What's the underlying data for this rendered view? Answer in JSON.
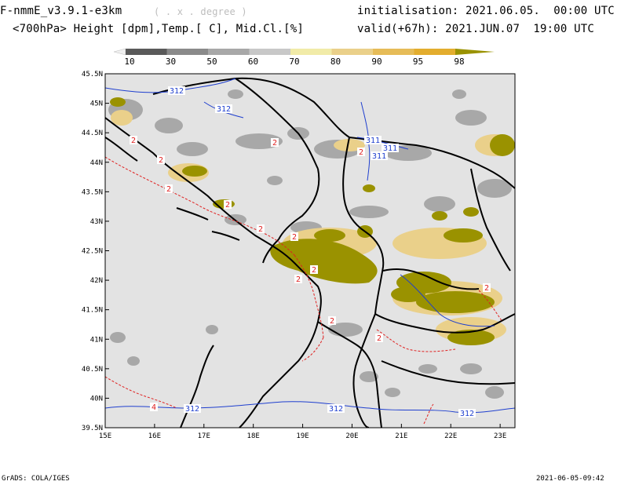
{
  "header": {
    "model": "F-nmmE_v3.9.1-e3km",
    "units": "( . x . degree )",
    "fields": "<700hPa> Height [dpm],Temp.[ C], Mid.Cl.[%]",
    "init": "initialisation: 2021.06.05.  00:00 UTC",
    "valid": "valid(+67h): 2021.JUN.07  19:00 UTC"
  },
  "colorbar": {
    "labels": [
      "10",
      "30",
      "50",
      "60",
      "70",
      "80",
      "90",
      "95",
      "98"
    ],
    "colors": [
      "#f0f0f0",
      "#5a5a5a",
      "#8a8a8a",
      "#a8a8a8",
      "#c8c8c8",
      "#f1eba8",
      "#ead08a",
      "#e6bc58",
      "#e3ad2e",
      "#9a9200"
    ]
  },
  "axes": {
    "lat_labels": [
      "45.5N",
      "45N",
      "44.5N",
      "44N",
      "43.5N",
      "43N",
      "42.5N",
      "42N",
      "41.5N",
      "41N",
      "40.5N",
      "40N",
      "39.5N"
    ],
    "lon_labels": [
      "15E",
      "16E",
      "17E",
      "18E",
      "19E",
      "20E",
      "21E",
      "22E",
      "23E"
    ]
  },
  "contour_labels": {
    "height": [
      "312",
      "312",
      "311",
      "311",
      "311",
      "312",
      "312",
      "312"
    ],
    "temp": [
      "2",
      "2",
      "2",
      "2",
      "2",
      "2",
      "2",
      "2",
      "2",
      "2",
      "2",
      "2",
      "2",
      "4"
    ]
  },
  "footer": {
    "left": "GrADS: COLA/IGES",
    "right": "2021-06-05-09:42"
  },
  "colors": {
    "sea_land_bg": "#e3e3e3",
    "cloud_olive": "#9a9200",
    "height_contour": "#1f3fcf",
    "temp_contour": "#e02020",
    "border": "#000000"
  }
}
